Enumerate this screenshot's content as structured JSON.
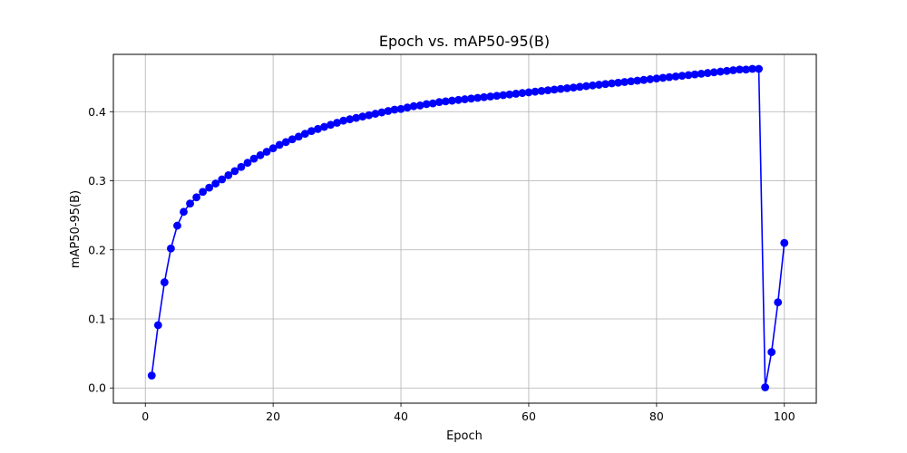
{
  "chart_data": {
    "type": "line",
    "title": "Epoch vs. mAP50-95(B)",
    "xlabel": "Epoch",
    "ylabel": "mAP50-95(B)",
    "xlim": [
      -5,
      105
    ],
    "ylim": [
      -0.022,
      0.483
    ],
    "xticks": [
      0,
      20,
      40,
      60,
      80,
      100
    ],
    "yticks": [
      0.0,
      0.1,
      0.2,
      0.3,
      0.4
    ],
    "ytick_labels": [
      "0.0",
      "0.1",
      "0.2",
      "0.3",
      "0.4"
    ],
    "grid": true,
    "series": [
      {
        "color": "#0000ff",
        "marker": "circle",
        "x": [
          1,
          2,
          3,
          4,
          5,
          6,
          7,
          8,
          9,
          10,
          11,
          12,
          13,
          14,
          15,
          16,
          17,
          18,
          19,
          20,
          21,
          22,
          23,
          24,
          25,
          26,
          27,
          28,
          29,
          30,
          31,
          32,
          33,
          34,
          35,
          36,
          37,
          38,
          39,
          40,
          41,
          42,
          43,
          44,
          45,
          46,
          47,
          48,
          49,
          50,
          51,
          52,
          53,
          54,
          55,
          56,
          57,
          58,
          59,
          60,
          61,
          62,
          63,
          64,
          65,
          66,
          67,
          68,
          69,
          70,
          71,
          72,
          73,
          74,
          75,
          76,
          77,
          78,
          79,
          80,
          81,
          82,
          83,
          84,
          85,
          86,
          87,
          88,
          89,
          90,
          91,
          92,
          93,
          94,
          95,
          96,
          97,
          98,
          99,
          100
        ],
        "values": [
          0.018,
          0.091,
          0.153,
          0.202,
          0.235,
          0.255,
          0.267,
          0.276,
          0.284,
          0.29,
          0.296,
          0.302,
          0.308,
          0.314,
          0.32,
          0.326,
          0.332,
          0.337,
          0.342,
          0.347,
          0.352,
          0.356,
          0.36,
          0.364,
          0.368,
          0.372,
          0.375,
          0.378,
          0.381,
          0.384,
          0.387,
          0.389,
          0.391,
          0.393,
          0.395,
          0.397,
          0.399,
          0.401,
          0.403,
          0.404,
          0.406,
          0.408,
          0.409,
          0.411,
          0.412,
          0.414,
          0.415,
          0.416,
          0.417,
          0.418,
          0.419,
          0.42,
          0.421,
          0.422,
          0.423,
          0.424,
          0.425,
          0.426,
          0.427,
          0.428,
          0.429,
          0.43,
          0.431,
          0.432,
          0.433,
          0.434,
          0.435,
          0.436,
          0.437,
          0.438,
          0.439,
          0.44,
          0.441,
          0.442,
          0.443,
          0.444,
          0.445,
          0.446,
          0.447,
          0.448,
          0.449,
          0.45,
          0.451,
          0.452,
          0.453,
          0.454,
          0.455,
          0.456,
          0.457,
          0.458,
          0.459,
          0.46,
          0.461,
          0.461,
          0.462,
          0.462,
          0.001,
          0.052,
          0.124,
          0.21
        ]
      }
    ]
  }
}
